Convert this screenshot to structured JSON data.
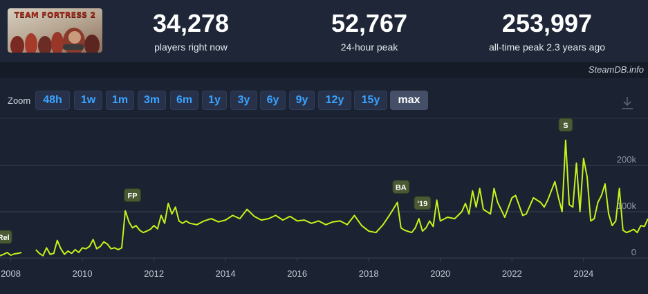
{
  "header": {
    "game_logo_text": "TEAM FORTRESS 2",
    "stats": [
      {
        "value": "34,278",
        "label": "players right now"
      },
      {
        "value": "52,767",
        "label": "24-hour peak"
      },
      {
        "value": "253,997",
        "label": "all-time peak 2.3 years ago"
      }
    ]
  },
  "credit": "SteamDB.info",
  "zoom": {
    "label": "Zoom",
    "options": [
      "48h",
      "1w",
      "1m",
      "3m",
      "6m",
      "1y",
      "3y",
      "6y",
      "9y",
      "12y",
      "15y",
      "max"
    ],
    "active": "max"
  },
  "colors": {
    "line": "#c6f31a",
    "background": "#1b2231",
    "accent": "#3aa3ff",
    "marker_bg": "#4b5a34"
  },
  "icons": {
    "download": "download-icon"
  },
  "chart_data": {
    "type": "line",
    "x_ticks": [
      "2008",
      "2010",
      "2012",
      "2014",
      "2016",
      "2018",
      "2020",
      "2022",
      "2024"
    ],
    "y_ticks": [
      "0",
      "100k",
      "200k"
    ],
    "ylim": [
      0,
      300000
    ],
    "xlim": [
      2007.7,
      2025.8
    ],
    "grid": true,
    "series": [
      {
        "x": [
          2007.7,
          2007.8,
          2007.9,
          2008.0,
          2008.1,
          2008.2,
          2008.3,
          2008.7,
          2008.8,
          2008.9,
          2009.0,
          2009.1,
          2009.2,
          2009.3,
          2009.4,
          2009.5,
          2009.6,
          2009.7,
          2009.8,
          2009.9,
          2010.0,
          2010.1,
          2010.2,
          2010.3,
          2010.4,
          2010.5,
          2010.6,
          2010.7,
          2010.8,
          2010.9,
          2011.0,
          2011.1,
          2011.2,
          2011.3,
          2011.4,
          2011.5,
          2011.6,
          2011.7,
          2011.8,
          2011.9,
          2012.0,
          2012.1,
          2012.2,
          2012.3,
          2012.4,
          2012.5,
          2012.6,
          2012.7,
          2012.8,
          2012.9,
          2013.0,
          2013.2,
          2013.4,
          2013.6,
          2013.8,
          2014.0,
          2014.2,
          2014.4,
          2014.6,
          2014.8,
          2015.0,
          2015.2,
          2015.4,
          2015.6,
          2015.8,
          2016.0,
          2016.2,
          2016.4,
          2016.6,
          2016.8,
          2017.0,
          2017.2,
          2017.4,
          2017.6,
          2017.8,
          2018.0,
          2018.2,
          2018.4,
          2018.6,
          2018.8,
          2018.9,
          2019.0,
          2019.2,
          2019.3,
          2019.4,
          2019.5,
          2019.6,
          2019.7,
          2019.8,
          2019.9,
          2020.0,
          2020.2,
          2020.4,
          2020.6,
          2020.7,
          2020.8,
          2020.9,
          2021.0,
          2021.1,
          2021.2,
          2021.4,
          2021.5,
          2021.6,
          2021.8,
          2022.0,
          2022.1,
          2022.3,
          2022.4,
          2022.6,
          2022.8,
          2022.9,
          2023.0,
          2023.2,
          2023.3,
          2023.4,
          2023.5,
          2023.6,
          2023.7,
          2023.8,
          2023.9,
          2024.0,
          2024.1,
          2024.2,
          2024.3,
          2024.4,
          2024.5,
          2024.6,
          2024.7,
          2024.8,
          2024.9,
          2025.0,
          2025.1,
          2025.2,
          2025.3,
          2025.4,
          2025.5,
          2025.6,
          2025.7,
          2025.8
        ],
        "values": [
          5000,
          8000,
          12000,
          6000,
          9000,
          10000,
          12000,
          18000,
          10000,
          5000,
          22000,
          8000,
          10000,
          38000,
          20000,
          8000,
          15000,
          10000,
          18000,
          12000,
          22000,
          20000,
          25000,
          40000,
          20000,
          25000,
          35000,
          30000,
          20000,
          22000,
          18000,
          22000,
          102000,
          78000,
          65000,
          70000,
          60000,
          55000,
          58000,
          62000,
          70000,
          63000,
          92000,
          75000,
          118000,
          95000,
          110000,
          80000,
          75000,
          80000,
          75000,
          72000,
          80000,
          85000,
          78000,
          82000,
          92000,
          85000,
          105000,
          90000,
          82000,
          85000,
          92000,
          82000,
          90000,
          80000,
          82000,
          75000,
          80000,
          72000,
          78000,
          80000,
          72000,
          92000,
          70000,
          58000,
          55000,
          72000,
          95000,
          120000,
          65000,
          60000,
          55000,
          65000,
          85000,
          58000,
          65000,
          80000,
          68000,
          125000,
          80000,
          88000,
          85000,
          100000,
          118000,
          95000,
          145000,
          110000,
          150000,
          105000,
          95000,
          150000,
          120000,
          88000,
          130000,
          135000,
          92000,
          95000,
          130000,
          120000,
          110000,
          125000,
          165000,
          130000,
          100000,
          254000,
          115000,
          110000,
          205000,
          100000,
          215000,
          175000,
          80000,
          85000,
          120000,
          135000,
          160000,
          95000,
          70000,
          80000,
          150000,
          60000,
          55000,
          58000,
          62000,
          55000,
          70000,
          68000,
          85000
        ]
      }
    ],
    "annotations": [
      {
        "label": "Rel",
        "x": 2007.8,
        "y": 12000
      },
      {
        "label": "FP",
        "x": 2011.4,
        "y": 102000
      },
      {
        "label": "BA",
        "x": 2018.9,
        "y": 120000
      },
      {
        "label": "'19",
        "x": 2019.5,
        "y": 85000
      },
      {
        "label": "S",
        "x": 2023.5,
        "y": 254000
      }
    ]
  }
}
